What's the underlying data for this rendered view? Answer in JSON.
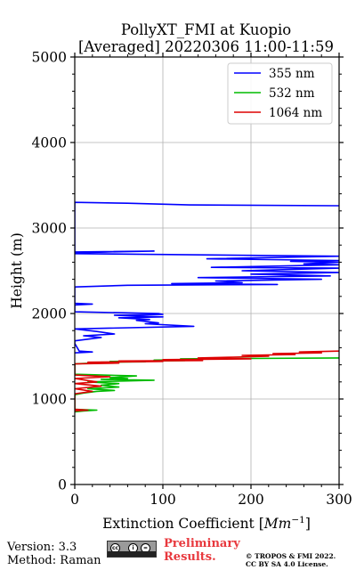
{
  "chart_data": {
    "type": "line",
    "title_line1": "PollyXT_FMI at Kuopio",
    "title_line2": "[Averaged] 20220306 11:00-11:59",
    "xlabel": "Extinction Coefficient [",
    "xlabel_unit": "Mm",
    "xlabel_exp": "−1",
    "xlabel_close": "]",
    "ylabel": "Height (m)",
    "xlim": [
      0,
      300
    ],
    "ylim": [
      0,
      5000
    ],
    "x_ticks": [
      0,
      100,
      200,
      300
    ],
    "x_tick_labels": [
      "0",
      "100",
      "200",
      "300"
    ],
    "y_ticks": [
      0,
      1000,
      2000,
      3000,
      4000,
      5000
    ],
    "y_tick_labels": [
      "0",
      "1000",
      "2000",
      "3000",
      "4000",
      "5000"
    ],
    "grid": true,
    "legend_position": "top-right",
    "series": [
      {
        "name": "355 nm",
        "color": "#0000ff",
        "points": [
          [
            300,
            3260
          ],
          [
            130,
            3270
          ],
          [
            60,
            3290
          ],
          [
            0,
            3300
          ],
          [
            0,
            2720
          ],
          [
            90,
            2730
          ],
          [
            0,
            2710
          ],
          [
            0,
            2700
          ],
          [
            300,
            2670
          ],
          [
            150,
            2640
          ],
          [
            300,
            2620
          ],
          [
            245,
            2610
          ],
          [
            300,
            2600
          ],
          [
            260,
            2580
          ],
          [
            300,
            2570
          ],
          [
            155,
            2540
          ],
          [
            300,
            2530
          ],
          [
            190,
            2500
          ],
          [
            300,
            2480
          ],
          [
            200,
            2460
          ],
          [
            290,
            2440
          ],
          [
            140,
            2420
          ],
          [
            280,
            2400
          ],
          [
            160,
            2380
          ],
          [
            190,
            2360
          ],
          [
            110,
            2350
          ],
          [
            230,
            2340
          ],
          [
            60,
            2330
          ],
          [
            0,
            2310
          ],
          [
            0,
            2120
          ],
          [
            20,
            2110
          ],
          [
            0,
            2100
          ],
          [
            0,
            2020
          ],
          [
            95,
            2000
          ],
          [
            100,
            1990
          ],
          [
            45,
            1980
          ],
          [
            100,
            1960
          ],
          [
            50,
            1950
          ],
          [
            85,
            1930
          ],
          [
            70,
            1920
          ],
          [
            95,
            1890
          ],
          [
            80,
            1880
          ],
          [
            135,
            1850
          ],
          [
            0,
            1820
          ],
          [
            25,
            1790
          ],
          [
            45,
            1760
          ],
          [
            10,
            1740
          ],
          [
            30,
            1720
          ],
          [
            15,
            1700
          ],
          [
            0,
            1680
          ],
          [
            0,
            1650
          ],
          [
            5,
            1560
          ],
          [
            20,
            1550
          ],
          [
            0,
            1540
          ]
        ]
      },
      {
        "name": "532 nm",
        "color": "#00bb00",
        "points": [
          [
            300,
            1480
          ],
          [
            120,
            1470
          ],
          [
            140,
            1460
          ],
          [
            90,
            1455
          ],
          [
            125,
            1450
          ],
          [
            40,
            1440
          ],
          [
            80,
            1435
          ],
          [
            30,
            1430
          ],
          [
            20,
            1420
          ],
          [
            0,
            1410
          ],
          [
            0,
            1290
          ],
          [
            70,
            1270
          ],
          [
            40,
            1250
          ],
          [
            60,
            1240
          ],
          [
            30,
            1230
          ],
          [
            90,
            1220
          ],
          [
            55,
            1210
          ],
          [
            15,
            1200
          ],
          [
            50,
            1180
          ],
          [
            30,
            1160
          ],
          [
            50,
            1140
          ],
          [
            15,
            1120
          ],
          [
            45,
            1100
          ],
          [
            25,
            1090
          ],
          [
            10,
            1070
          ],
          [
            0,
            1050
          ],
          [
            0,
            880
          ],
          [
            25,
            870
          ],
          [
            10,
            860
          ],
          [
            0,
            850
          ]
        ]
      },
      {
        "name": "1064 nm",
        "color": "#dd0000",
        "points": [
          [
            300,
            1560
          ],
          [
            255,
            1550
          ],
          [
            280,
            1540
          ],
          [
            225,
            1530
          ],
          [
            250,
            1520
          ],
          [
            190,
            1510
          ],
          [
            220,
            1500
          ],
          [
            180,
            1490
          ],
          [
            140,
            1480
          ],
          [
            200,
            1470
          ],
          [
            100,
            1460
          ],
          [
            145,
            1450
          ],
          [
            50,
            1445
          ],
          [
            100,
            1440
          ],
          [
            15,
            1430
          ],
          [
            50,
            1420
          ],
          [
            0,
            1410
          ],
          [
            0,
            1280
          ],
          [
            40,
            1260
          ],
          [
            0,
            1240
          ],
          [
            25,
            1200
          ],
          [
            0,
            1180
          ],
          [
            30,
            1150
          ],
          [
            0,
            1120
          ],
          [
            20,
            1090
          ],
          [
            0,
            1060
          ],
          [
            0,
            1040
          ],
          [
            0,
            880
          ],
          [
            15,
            870
          ],
          [
            0,
            860
          ]
        ]
      }
    ]
  },
  "footer": {
    "version": "Version: 3.3",
    "method": "Method: Raman",
    "cc_glyphs": [
      "cc",
      "i",
      "="
    ],
    "preliminary_line1": "Preliminary",
    "preliminary_line2": "Results.",
    "copyright_line1": "© TROPOS & FMI 2022.",
    "copyright_line2": "CC BY SA 4.0 License."
  }
}
